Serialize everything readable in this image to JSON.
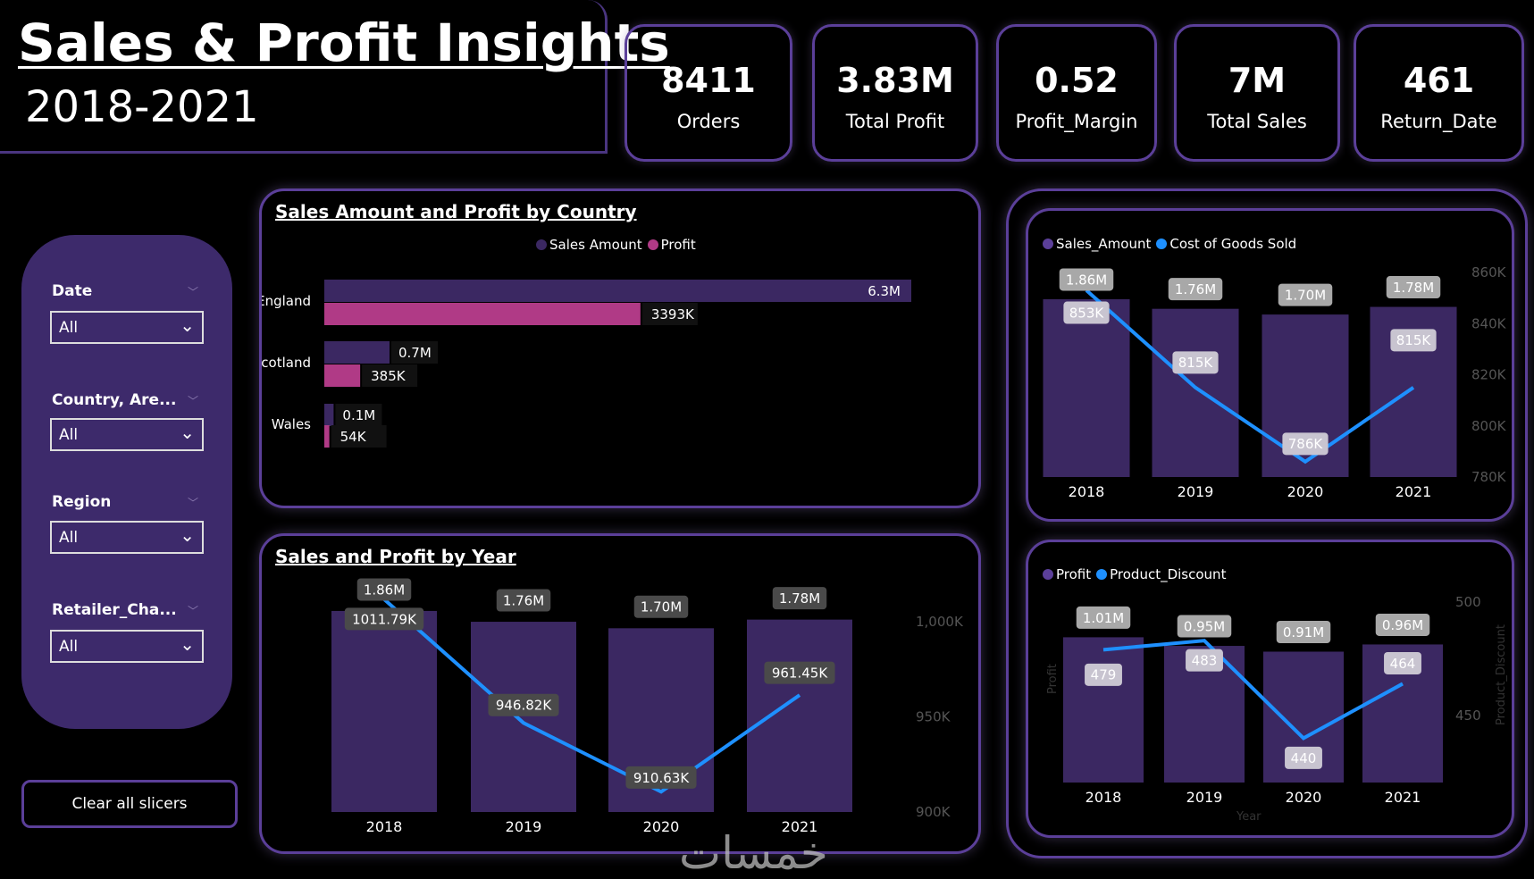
{
  "header": {
    "title": "Sales & Profit Insights",
    "subtitle": "2018-2021"
  },
  "kpis": [
    {
      "value": "8411",
      "label": "Orders"
    },
    {
      "value": "3.83M",
      "label": "Total Profit"
    },
    {
      "value": "0.52",
      "label": "Profit_Margin"
    },
    {
      "value": "7M",
      "label": "Total Sales"
    },
    {
      "value": "461",
      "label": "Return_Date"
    }
  ],
  "slicers": [
    {
      "label": "Date",
      "value": "All"
    },
    {
      "label": "Country, Are...",
      "value": "All"
    },
    {
      "label": "Region",
      "value": "All"
    },
    {
      "label": "Retailer_Cha...",
      "value": "All"
    }
  ],
  "clear_button": "Clear all slicers",
  "watermark": "خمسات",
  "colors": {
    "bar": "#3b2862",
    "profit_bar": "#b03a86",
    "line": "#1e90ff",
    "accent": "#5b3f99"
  },
  "chart_data": [
    {
      "type": "bar",
      "title": "Sales Amount and Profit by Country",
      "orientation": "horizontal",
      "categories": [
        "England",
        "Scotland",
        "Wales"
      ],
      "series": [
        {
          "name": "Sales Amount",
          "values": [
            6.3,
            0.7,
            0.1
          ],
          "unit": "M",
          "labels": [
            "6.3M",
            "0.7M",
            "0.1M"
          ]
        },
        {
          "name": "Profit",
          "values": [
            3393,
            385,
            54
          ],
          "unit": "K",
          "labels": [
            "3393K",
            "385K",
            "54K"
          ]
        }
      ],
      "legend": "top-center"
    },
    {
      "type": "bar+line",
      "title": "Sales and Profit by Year",
      "categories": [
        "2018",
        "2019",
        "2020",
        "2021"
      ],
      "bars": {
        "values": [
          1.86,
          1.76,
          1.7,
          1.78
        ],
        "labels": [
          "1.86M",
          "1.76M",
          "1.70M",
          "1.78M"
        ]
      },
      "line": {
        "values": [
          1011.79,
          946.82,
          910.63,
          961.45
        ],
        "labels": [
          "1011.79K",
          "946.82K",
          "910.63K",
          "961.45K"
        ]
      },
      "y2_ticks": [
        "1,000K",
        "950K",
        "900K"
      ],
      "y2lim": [
        900,
        1000
      ]
    },
    {
      "type": "bar+line",
      "categories": [
        "2018",
        "2019",
        "2020",
        "2021"
      ],
      "bars": {
        "name": "Sales_Amount",
        "values": [
          1.86,
          1.76,
          1.7,
          1.78
        ],
        "labels": [
          "1.86M",
          "1.76M",
          "1.70M",
          "1.78M"
        ]
      },
      "line": {
        "name": "Cost of Goods Sold",
        "values": [
          853,
          815,
          786,
          815
        ],
        "labels": [
          "853K",
          "815K",
          "786K",
          "815K"
        ]
      },
      "y2_ticks": [
        "860K",
        "840K",
        "820K",
        "800K",
        "780K"
      ],
      "y2lim": [
        780,
        860
      ],
      "legend": "top-left"
    },
    {
      "type": "bar+line",
      "categories": [
        "2018",
        "2019",
        "2020",
        "2021"
      ],
      "bars": {
        "name": "Profit",
        "values": [
          1.01,
          0.95,
          0.91,
          0.96
        ],
        "labels": [
          "1.01M",
          "0.95M",
          "0.91M",
          "0.96M"
        ]
      },
      "line": {
        "name": "Product_Discount",
        "values": [
          479,
          483,
          440,
          464
        ],
        "labels": [
          "479",
          "483",
          "440",
          "464"
        ]
      },
      "y2_ticks": [
        "500",
        "450"
      ],
      "y2lim": [
        450,
        500
      ],
      "xlabel": "Year",
      "ylabel": "Profit",
      "y2label": "Product_Discount",
      "legend": "top-left"
    }
  ]
}
